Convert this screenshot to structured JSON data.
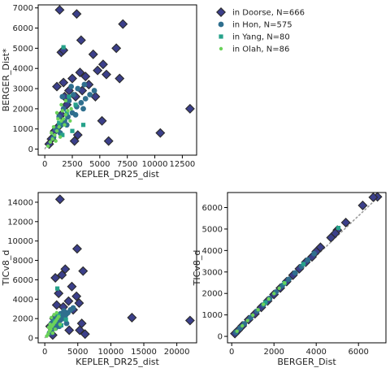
{
  "colors": {
    "doorse": "#3b3f8a",
    "hon": "#2f6f8e",
    "yang": "#26a28a",
    "olah": "#6bd25a",
    "edge": "#2b2b2b",
    "line": "#999999"
  },
  "legend": {
    "entries": [
      {
        "label": "in Doorse, N=666",
        "marker": "diamond",
        "color_key": "doorse"
      },
      {
        "label": "in Hon, N=575",
        "marker": "circle",
        "color_key": "hon"
      },
      {
        "label": "in Yang, N=80",
        "marker": "square",
        "color_key": "yang"
      },
      {
        "label": "in Olah, N=86",
        "marker": "dot",
        "color_key": "olah"
      }
    ]
  },
  "chart_data": [
    {
      "type": "scatter",
      "id": "kepler-vs-berger",
      "xlabel": "KEPLER_DR25_dist",
      "ylabel": "BERGER_Dist*",
      "xlim": [
        -600,
        13800
      ],
      "ylim": [
        -300,
        7150
      ],
      "xticks": [
        0,
        2500,
        5000,
        7500,
        10000,
        12500
      ],
      "yticks": [
        0,
        1000,
        2000,
        3000,
        4000,
        5000,
        6000,
        7000
      ],
      "trend_line": [
        [
          0,
          0
        ],
        [
          700,
          700
        ]
      ],
      "series": [
        {
          "name": "in Doorse, N=666",
          "marker": "diamond",
          "color_key": "doorse",
          "points": [
            [
              1350,
              6900
            ],
            [
              2900,
              6700
            ],
            [
              7100,
              6200
            ],
            [
              3300,
              5400
            ],
            [
              6500,
              5000
            ],
            [
              1500,
              4800
            ],
            [
              1700,
              4900
            ],
            [
              4400,
              4700
            ],
            [
              5300,
              4200
            ],
            [
              4800,
              3900
            ],
            [
              5600,
              3700
            ],
            [
              3700,
              3600
            ],
            [
              2500,
              3500
            ],
            [
              1700,
              3300
            ],
            [
              6800,
              3500
            ],
            [
              13200,
              2000
            ],
            [
              10500,
              800
            ],
            [
              5200,
              1400
            ],
            [
              3000,
              700
            ],
            [
              2700,
              400
            ],
            [
              5800,
              400
            ],
            [
              900,
              900
            ],
            [
              600,
              500
            ],
            [
              400,
              250
            ],
            [
              1200,
              1100
            ],
            [
              2000,
              2200
            ],
            [
              2800,
              2600
            ],
            [
              3400,
              2900
            ],
            [
              4000,
              3200
            ],
            [
              1500,
              1700
            ],
            [
              2200,
              2900
            ],
            [
              3200,
              3800
            ],
            [
              1800,
              2600
            ],
            [
              4600,
              2600
            ],
            [
              1100,
              3100
            ]
          ]
        },
        {
          "name": "in Hon, N=575",
          "marker": "circle",
          "color_key": "hon",
          "points": [
            [
              800,
              600
            ],
            [
              1200,
              900
            ],
            [
              1500,
              1200
            ],
            [
              1800,
              1400
            ],
            [
              2100,
              1600
            ],
            [
              2500,
              1800
            ],
            [
              2900,
              2100
            ],
            [
              3300,
              2300
            ],
            [
              3700,
              2500
            ],
            [
              4100,
              2700
            ],
            [
              4500,
              2900
            ],
            [
              1300,
              1600
            ],
            [
              1700,
              2000
            ],
            [
              2200,
              2400
            ],
            [
              2600,
              2700
            ],
            [
              3000,
              3000
            ],
            [
              3600,
              3200
            ],
            [
              1000,
              1000
            ],
            [
              1400,
              800
            ],
            [
              2000,
              1200
            ],
            [
              2800,
              1700
            ],
            [
              3500,
              2000
            ],
            [
              1600,
              2600
            ],
            [
              2400,
              3100
            ]
          ]
        },
        {
          "name": "in Yang, N=80",
          "marker": "square",
          "color_key": "yang",
          "points": [
            [
              1700,
              5050
            ],
            [
              2500,
              900
            ],
            [
              3500,
              1200
            ],
            [
              2000,
              1800
            ],
            [
              1600,
              700
            ],
            [
              2800,
              2200
            ],
            [
              1300,
              1300
            ],
            [
              2200,
              2600
            ]
          ]
        },
        {
          "name": "in Olah, N=86",
          "marker": "dot",
          "color_key": "olah",
          "points": [
            [
              300,
              150
            ],
            [
              500,
              350
            ],
            [
              700,
              500
            ],
            [
              900,
              700
            ],
            [
              1100,
              900
            ],
            [
              1300,
              1100
            ],
            [
              1500,
              1400
            ],
            [
              1700,
              1500
            ],
            [
              1900,
              1700
            ],
            [
              2100,
              1900
            ],
            [
              800,
              1100
            ],
            [
              1200,
              1500
            ],
            [
              1600,
              1900
            ],
            [
              1000,
              400
            ],
            [
              1400,
              600
            ],
            [
              1800,
              1200
            ],
            [
              2300,
              1400
            ],
            [
              600,
              800
            ],
            [
              1500,
              2200
            ],
            [
              1900,
              2400
            ],
            [
              2400,
              2000
            ],
            [
              1100,
              1800
            ]
          ]
        }
      ]
    },
    {
      "type": "scatter",
      "id": "kepler-vs-tic",
      "xlabel": "KEPLER_DR25_dist",
      "ylabel": "TICv8_d",
      "xlim": [
        -1000,
        23000
      ],
      "ylim": [
        -500,
        15000
      ],
      "xticks": [
        0,
        5000,
        10000,
        15000,
        20000
      ],
      "yticks": [
        0,
        2000,
        4000,
        6000,
        8000,
        10000,
        12000,
        14000
      ],
      "trend_line": [
        [
          0,
          0
        ],
        [
          800,
          800
        ]
      ],
      "series": [
        {
          "name": "in Doorse, N=666",
          "marker": "diamond",
          "color_key": "doorse",
          "points": [
            [
              2300,
              14300
            ],
            [
              4900,
              9200
            ],
            [
              3100,
              7100
            ],
            [
              5800,
              6900
            ],
            [
              2600,
              6500
            ],
            [
              1600,
              6200
            ],
            [
              4100,
              5300
            ],
            [
              2100,
              4600
            ],
            [
              4800,
              4300
            ],
            [
              3600,
              3800
            ],
            [
              5200,
              3600
            ],
            [
              1800,
              3400
            ],
            [
              2800,
              3200
            ],
            [
              13200,
              2100
            ],
            [
              22000,
              1800
            ],
            [
              5600,
              1500
            ],
            [
              5300,
              800
            ],
            [
              3700,
              800
            ],
            [
              6100,
              400
            ],
            [
              1200,
              300
            ],
            [
              800,
              1200
            ],
            [
              3000,
              2400
            ],
            [
              4300,
              2900
            ],
            [
              1400,
              2000
            ]
          ]
        },
        {
          "name": "in Hon, N=575",
          "marker": "circle",
          "color_key": "hon",
          "points": [
            [
              700,
              500
            ],
            [
              1100,
              900
            ],
            [
              1500,
              1300
            ],
            [
              1900,
              1600
            ],
            [
              2300,
              1800
            ],
            [
              2700,
              2000
            ],
            [
              3100,
              2300
            ],
            [
              3500,
              2600
            ],
            [
              3900,
              2900
            ],
            [
              4300,
              3100
            ],
            [
              1300,
              1800
            ],
            [
              1800,
              2200
            ],
            [
              2400,
              2500
            ],
            [
              2900,
              2800
            ],
            [
              1000,
              1500
            ],
            [
              1600,
              1000
            ],
            [
              2200,
              1200
            ],
            [
              3300,
              1500
            ]
          ]
        },
        {
          "name": "in Yang, N=80",
          "marker": "square",
          "color_key": "yang",
          "points": [
            [
              1900,
              5100
            ],
            [
              2500,
              1300
            ],
            [
              1500,
              1700
            ],
            [
              2100,
              2300
            ],
            [
              3200,
              1900
            ]
          ]
        },
        {
          "name": "in Olah, N=86",
          "marker": "dot",
          "color_key": "olah",
          "points": [
            [
              300,
              200
            ],
            [
              500,
              400
            ],
            [
              700,
              700
            ],
            [
              900,
              900
            ],
            [
              1100,
              1200
            ],
            [
              1300,
              1400
            ],
            [
              1500,
              1600
            ],
            [
              1700,
              1800
            ],
            [
              1900,
              2000
            ],
            [
              2100,
              2200
            ],
            [
              1000,
              2100
            ],
            [
              1400,
              2400
            ],
            [
              800,
              1400
            ],
            [
              1200,
              500
            ],
            [
              1600,
              900
            ],
            [
              2300,
              1400
            ],
            [
              600,
              1100
            ],
            [
              1800,
              2600
            ]
          ]
        }
      ]
    },
    {
      "type": "scatter",
      "id": "berger-vs-tic",
      "xlabel": "BERGER_Dist",
      "ylabel": "TICv8_d",
      "xlim": [
        -200,
        7300
      ],
      "ylim": [
        -300,
        6700
      ],
      "xticks": [
        0,
        2000,
        4000,
        6000
      ],
      "yticks": [
        0,
        1000,
        2000,
        3000,
        4000,
        5000,
        6000
      ],
      "trend_line": [
        [
          150,
          150
        ],
        [
          6950,
          6500
        ]
      ],
      "series": [
        {
          "name": "in Doorse, N=666",
          "marker": "diamond",
          "color_key": "doorse",
          "points": [
            [
              6900,
              6500
            ],
            [
              6700,
              6480
            ],
            [
              6200,
              6100
            ],
            [
              5400,
              5300
            ],
            [
              5000,
              4950
            ],
            [
              4900,
              4800
            ],
            [
              4700,
              4600
            ],
            [
              4200,
              4150
            ],
            [
              4000,
              3950
            ],
            [
              3800,
              3700
            ],
            [
              3500,
              3450
            ],
            [
              3200,
              3150
            ],
            [
              2900,
              2850
            ],
            [
              2600,
              2550
            ],
            [
              2300,
              2250
            ],
            [
              2000,
              1950
            ],
            [
              1700,
              1650
            ],
            [
              1400,
              1350
            ],
            [
              1100,
              1050
            ],
            [
              800,
              780
            ],
            [
              500,
              490
            ],
            [
              300,
              280
            ],
            [
              150,
              130
            ]
          ]
        },
        {
          "name": "in Hon, N=575",
          "marker": "circle",
          "color_key": "hon",
          "points": [
            [
              200,
              190
            ],
            [
              400,
              390
            ],
            [
              600,
              590
            ],
            [
              900,
              880
            ],
            [
              1200,
              1180
            ],
            [
              1500,
              1470
            ],
            [
              1800,
              1770
            ],
            [
              2100,
              2070
            ],
            [
              2400,
              2370
            ],
            [
              2700,
              2660
            ],
            [
              3000,
              2960
            ],
            [
              3300,
              3260
            ],
            [
              3600,
              3560
            ],
            [
              3900,
              3850
            ]
          ]
        },
        {
          "name": "in Yang, N=80",
          "marker": "square",
          "color_key": "yang",
          "points": [
            [
              5050,
              5050
            ],
            [
              2500,
              2480
            ],
            [
              1600,
              1580
            ],
            [
              3400,
              3370
            ]
          ]
        },
        {
          "name": "in Olah, N=86",
          "marker": "dot",
          "color_key": "olah",
          "points": [
            [
              250,
              240
            ],
            [
              500,
              490
            ],
            [
              750,
              740
            ],
            [
              1000,
              990
            ],
            [
              1250,
              1240
            ],
            [
              1500,
              1490
            ],
            [
              1750,
              1740
            ],
            [
              2000,
              1990
            ],
            [
              2250,
              2240
            ],
            [
              2500,
              2490
            ]
          ]
        }
      ]
    }
  ]
}
